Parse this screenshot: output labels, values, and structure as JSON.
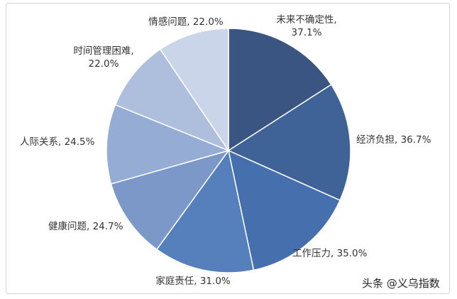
{
  "chart_data": {
    "type": "pie",
    "slices": [
      {
        "name": "未来不确定性",
        "value": 37.1,
        "label": "37.1%",
        "color": "#3a5581"
      },
      {
        "name": "经济负担",
        "value": 36.7,
        "label": "36.7%",
        "color": "#3f6397"
      },
      {
        "name": "工作压力",
        "value": 35.0,
        "label": "35.0%",
        "color": "#4670ad"
      },
      {
        "name": "家庭责任",
        "value": 31.0,
        "label": "31.0%",
        "color": "#5580bb"
      },
      {
        "name": "健康问题",
        "value": 24.7,
        "label": "24.7%",
        "color": "#7b98c8"
      },
      {
        "name": "人际关系",
        "value": 24.5,
        "label": "24.5%",
        "color": "#95acd4"
      },
      {
        "name": "时间管理困难",
        "value": 22.0,
        "label": "22.0%",
        "color": "#aebfde"
      },
      {
        "name": "情感问题",
        "value": 22.0,
        "label": "22.0%",
        "color": "#cad5e9"
      }
    ]
  },
  "watermark": "头条 @义乌指数"
}
